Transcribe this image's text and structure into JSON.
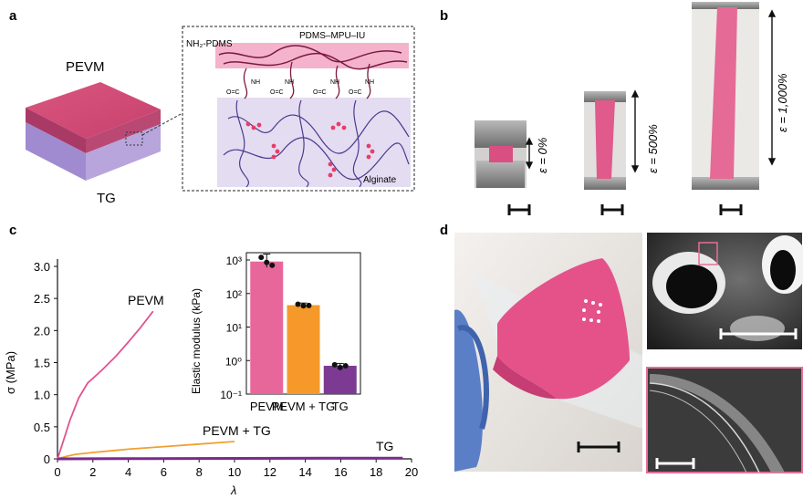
{
  "panels": {
    "a": {
      "letter": "a",
      "layer_top": "PEVM",
      "layer_bottom": "TG",
      "inset_labels": {
        "left_chain": "NH₂-PDMS",
        "top_chain": "PDMS–MPU–IU",
        "bottom": "Alginate",
        "urethane_group": "O=C",
        "amine": "NH"
      }
    },
    "b": {
      "letter": "b",
      "strains": [
        "ε = 0%",
        "ε = 500%",
        "ε = 1,000%"
      ]
    },
    "c": {
      "letter": "c",
      "curve_labels": [
        "PEVM",
        "PEVM + TG",
        "TG"
      ],
      "xlabel": "λ",
      "ylabel": "σ (MPa)",
      "xticks": [
        "0",
        "2",
        "4",
        "6",
        "8",
        "10",
        "12",
        "14",
        "16",
        "18",
        "20"
      ],
      "yticks": [
        "0",
        "0.5",
        "1.0",
        "1.5",
        "2.0",
        "2.5",
        "3.0"
      ],
      "inset_ylabel": "Elastic modulus (kPa)",
      "inset_categories": [
        "PEVM",
        "PEVM + TG",
        "TG"
      ],
      "inset_yticks": [
        "10⁻¹",
        "10⁰",
        "10¹",
        "10²",
        "10³"
      ]
    },
    "d": {
      "letter": "d"
    }
  },
  "chart_data": [
    {
      "type": "line",
      "xlabel": "λ",
      "ylabel": "σ (MPa)",
      "xlim": [
        0,
        20
      ],
      "ylim": [
        0,
        3.2
      ],
      "series": [
        {
          "name": "PEVM",
          "color": "#e0538f",
          "points": [
            [
              0,
              0
            ],
            [
              0.3,
              0.25
            ],
            [
              0.7,
              0.6
            ],
            [
              1.2,
              0.95
            ],
            [
              1.7,
              1.18
            ],
            [
              2.5,
              1.38
            ],
            [
              3.3,
              1.6
            ],
            [
              4,
              1.82
            ],
            [
              4.7,
              2.05
            ],
            [
              5.4,
              2.3
            ]
          ]
        },
        {
          "name": "PEVM + TG",
          "color": "#f0a030",
          "points": [
            [
              0,
              0
            ],
            [
              0.5,
              0.04
            ],
            [
              1,
              0.07
            ],
            [
              2,
              0.1
            ],
            [
              4,
              0.15
            ],
            [
              6,
              0.19
            ],
            [
              8,
              0.23
            ],
            [
              10,
              0.27
            ]
          ]
        },
        {
          "name": "TG",
          "color": "#7b2a8c",
          "points": [
            [
              0,
              0
            ],
            [
              5,
              0.004
            ],
            [
              10,
              0.007
            ],
            [
              15,
              0.01
            ],
            [
              19.5,
              0.012
            ]
          ]
        }
      ]
    },
    {
      "type": "bar",
      "ylabel": "Elastic modulus (kPa)",
      "yscale": "log",
      "ylim": [
        0.1,
        1000
      ],
      "categories": [
        "PEVM",
        "PEVM + TG",
        "TG"
      ],
      "values": [
        900,
        45,
        0.7
      ],
      "colors": [
        "#e8679b",
        "#f59a2a",
        "#7c3a93"
      ],
      "error_up": [
        1500,
        52,
        0.82
      ],
      "error_down": [
        600,
        40,
        0.6
      ],
      "points": [
        [
          1200,
          850,
          700
        ],
        [
          48,
          43,
          44
        ],
        [
          0.75,
          0.62,
          0.7
        ]
      ]
    }
  ]
}
